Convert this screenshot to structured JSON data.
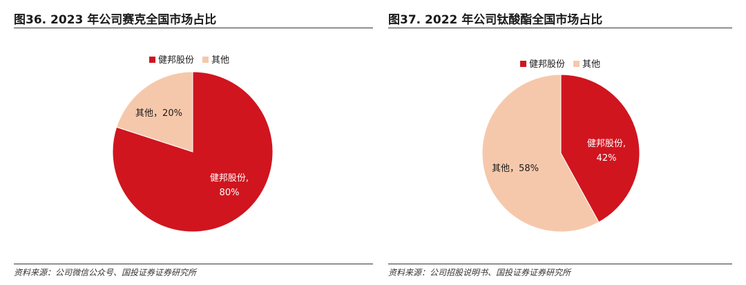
{
  "colors": {
    "primary": "#d0151f",
    "secondary": "#f6c8ab"
  },
  "panels": [
    {
      "title": "图36. 2023 年公司赛克全国市场占比",
      "source": "资料来源：公司微信公众号、国投证券证券研究所"
    },
    {
      "title": "图37. 2022 年公司钛酸酯全国市场占比",
      "source": "资料来源：公司招股说明书、国投证券证券研究所"
    }
  ],
  "chart_data": [
    {
      "type": "pie",
      "title": "2023 年公司赛克全国市场占比",
      "legend_position": "top",
      "slices": [
        {
          "label": "健邦股份",
          "value": 80,
          "value_text": "80%",
          "color": "#d0151f"
        },
        {
          "label": "其他",
          "value": 20,
          "value_text": "20%",
          "color": "#f6c8ab"
        }
      ]
    },
    {
      "type": "pie",
      "title": "2022 年公司钛酸酯全国市场占比",
      "legend_position": "top",
      "slices": [
        {
          "label": "健邦股份",
          "value": 42,
          "value_text": "42%",
          "color": "#d0151f"
        },
        {
          "label": "其他",
          "value": 58,
          "value_text": "58%",
          "color": "#f6c8ab"
        }
      ]
    }
  ]
}
